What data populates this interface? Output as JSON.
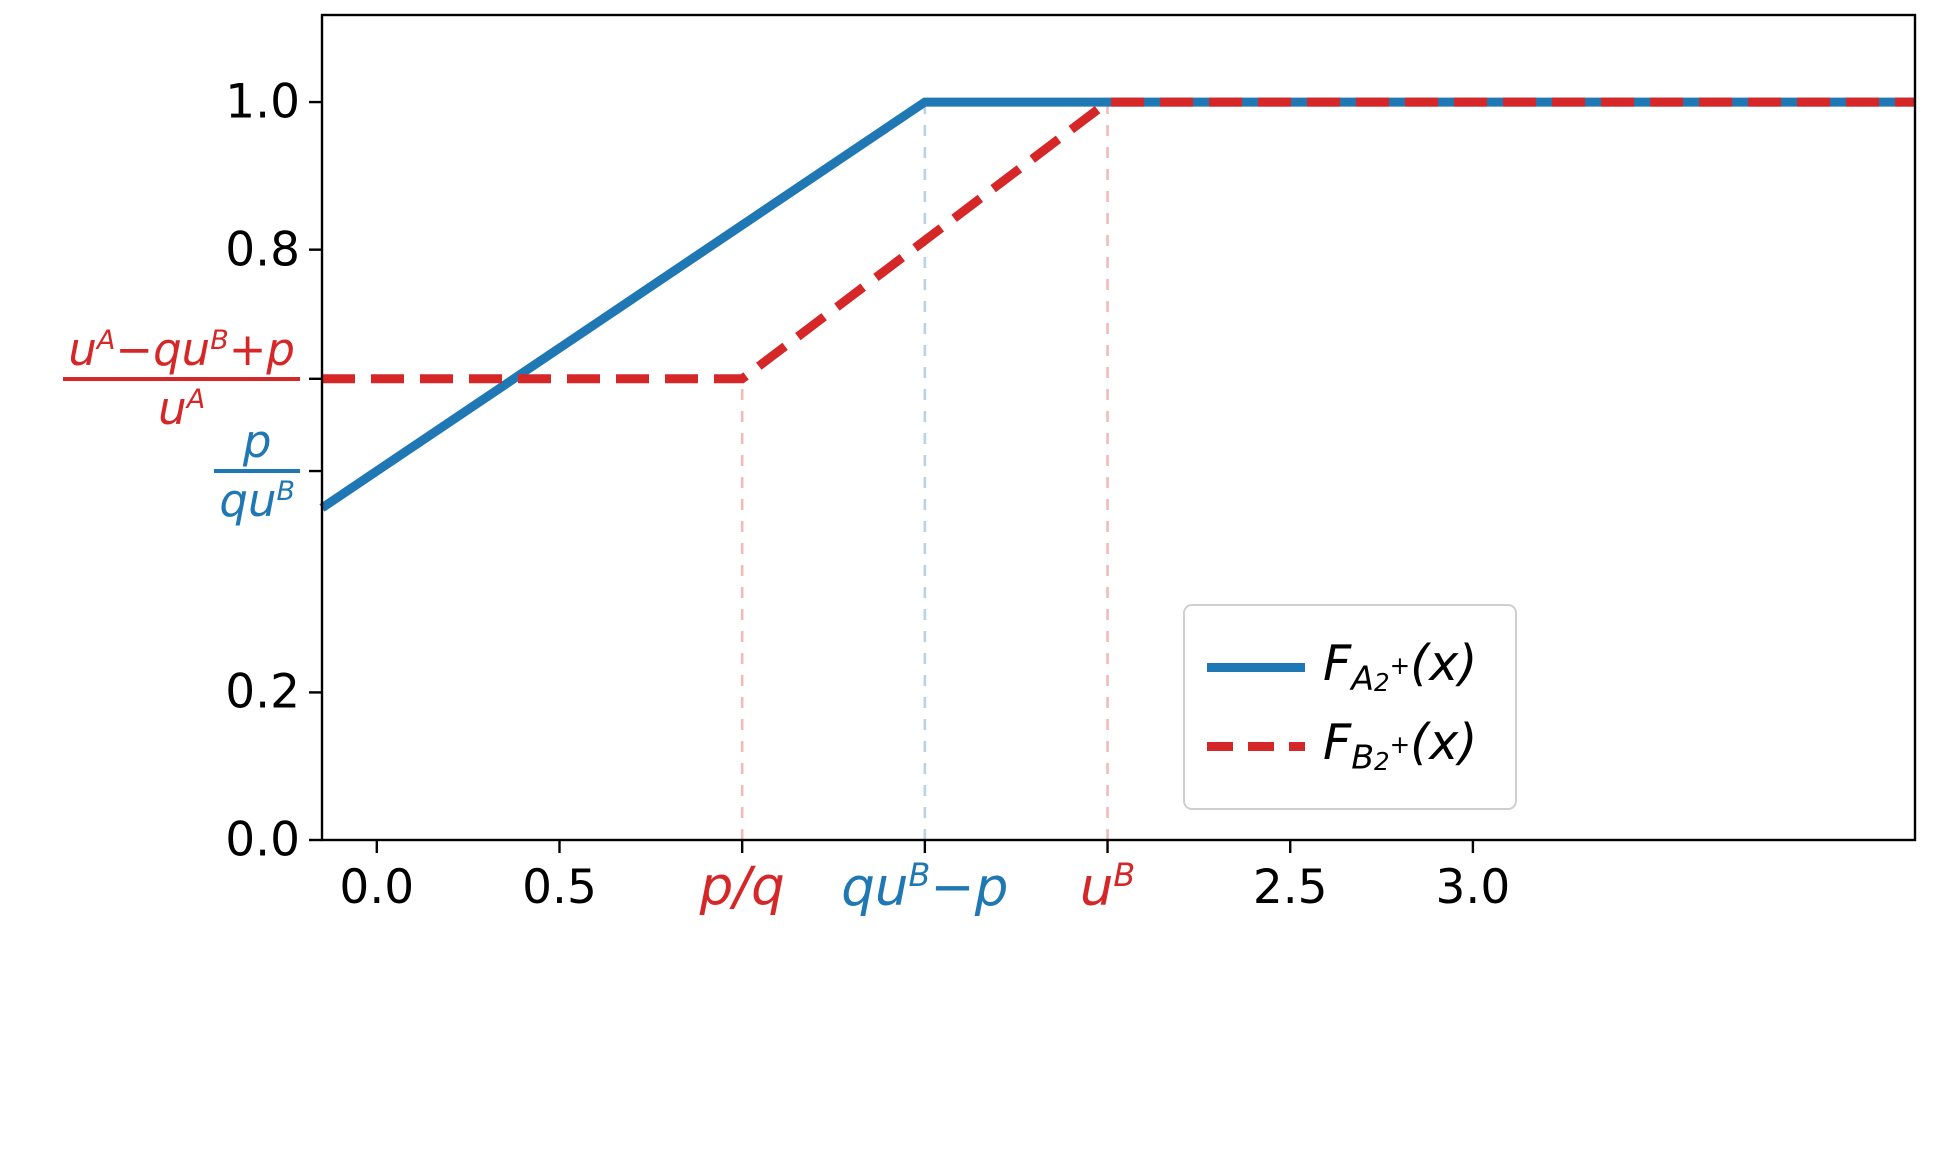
{
  "figure": {
    "background": "#ffffff",
    "accent_blue": "#1f77b4",
    "accent_red": "#d62728"
  },
  "chart_data": {
    "type": "line",
    "title": "",
    "xlabel": "",
    "ylabel": "",
    "xlim": [
      -0.15,
      4.21
    ],
    "ylim": [
      0,
      1.118
    ],
    "grid": false,
    "legend_position": "inside lower-right area",
    "series": [
      {
        "name": "F_A2+(x)",
        "color": "#1f77b4",
        "dash": "solid",
        "width": 9,
        "points": [
          [
            -0.15,
            0.45
          ],
          [
            0.0,
            0.5
          ],
          [
            1.5,
            1.0
          ],
          [
            4.21,
            1.0
          ]
        ],
        "note": "CDF rising linearly from p/(qu^B)=0.5 at x=0 to 1.0 at x=qu^B-p=1.5, then constant 1.0"
      },
      {
        "name": "F_B2+(x)",
        "color": "#d62728",
        "dash": "dashed",
        "width": 9,
        "points": [
          [
            -0.15,
            0.625
          ],
          [
            1.0,
            0.625
          ],
          [
            2.0,
            1.0
          ],
          [
            4.21,
            1.0
          ]
        ],
        "note": "CDF constant at (u^A-qu^B+p)/u^A=0.625 until x=p/q=1, rising linearly to 1.0 at x=u^B=2, then constant 1.0"
      }
    ],
    "guides": [
      {
        "x": 1.0,
        "y_from": 0,
        "y_to": 0.625,
        "color": "rgba(214,39,40,0.32)",
        "id": "guide-p-over-q"
      },
      {
        "x": 1.5,
        "y_from": 0,
        "y_to": 1.0,
        "color": "rgba(31,119,180,0.32)",
        "id": "guide-quB-minus-p"
      },
      {
        "x": 2.0,
        "y_from": 0,
        "y_to": 1.0,
        "color": "rgba(214,39,40,0.32)",
        "id": "guide-uB"
      }
    ],
    "x_ticks": [
      {
        "value": 0.0,
        "id": "0-0",
        "math": false,
        "color": "#000000",
        "label_tokens": [
          {
            "t": "0.0"
          }
        ]
      },
      {
        "value": 0.5,
        "id": "0-5",
        "math": false,
        "color": "#000000",
        "label_tokens": [
          {
            "t": "0.5"
          }
        ]
      },
      {
        "value": 1.0,
        "id": "p-over-q",
        "math": true,
        "color": "#d62728",
        "label_tokens": [
          {
            "t": "p/q"
          }
        ]
      },
      {
        "value": 1.5,
        "id": "quB-minus-p",
        "math": true,
        "color": "#1f77b4",
        "label_tokens": [
          {
            "t": "qu"
          },
          {
            "t": "B",
            "m": "sup"
          },
          {
            "t": "−p"
          }
        ]
      },
      {
        "value": 2.0,
        "id": "uB",
        "math": true,
        "color": "#d62728",
        "label_tokens": [
          {
            "t": "u"
          },
          {
            "t": "B",
            "m": "sup"
          }
        ]
      },
      {
        "value": 2.5,
        "id": "2-5",
        "math": false,
        "color": "#000000",
        "label_tokens": [
          {
            "t": "2.5"
          }
        ]
      },
      {
        "value": 3.0,
        "id": "3-0",
        "math": false,
        "color": "#000000",
        "label_tokens": [
          {
            "t": "3.0"
          }
        ]
      }
    ],
    "y_ticks": [
      {
        "value": 0.0,
        "id": "0-0",
        "type": "plain",
        "color": "#000000",
        "label": "0.0"
      },
      {
        "value": 0.2,
        "id": "0-2",
        "type": "plain",
        "color": "#000000",
        "label": "0.2"
      },
      {
        "value": 0.5,
        "id": "p-over-quB",
        "type": "fraction",
        "color": "#1f77b4",
        "num_tokens": [
          {
            "t": "p"
          }
        ],
        "den_tokens": [
          {
            "t": "qu"
          },
          {
            "t": "B",
            "m": "sup"
          }
        ]
      },
      {
        "value": 0.625,
        "id": "uA-minus-quB-plus-p-over-uA",
        "type": "fraction",
        "color": "#d62728",
        "num_tokens": [
          {
            "t": "u"
          },
          {
            "t": "A",
            "m": "sup"
          },
          {
            "t": "−qu"
          },
          {
            "t": "B",
            "m": "sup"
          },
          {
            "t": "+p"
          }
        ],
        "den_tokens": [
          {
            "t": "u"
          },
          {
            "t": "A",
            "m": "sup"
          }
        ]
      },
      {
        "value": 0.8,
        "id": "0-8",
        "type": "plain",
        "color": "#000000",
        "label": "0.8"
      },
      {
        "value": 1.0,
        "id": "1-0",
        "type": "plain",
        "color": "#000000",
        "label": "1.0"
      }
    ],
    "legend": {
      "entries": [
        {
          "id": "FA2plus",
          "color": "#1f77b4",
          "dash": "solid",
          "tokens": [
            {
              "t": "F"
            },
            {
              "t": "A",
              "m": "sub"
            },
            {
              "t": "2",
              "m": "ssub"
            },
            {
              "t": "+",
              "m": "ssup"
            },
            {
              "t": "(x)"
            }
          ]
        },
        {
          "id": "FB2plus",
          "color": "#d62728",
          "dash": "dashed",
          "tokens": [
            {
              "t": "F"
            },
            {
              "t": "B",
              "m": "sub"
            },
            {
              "t": "2",
              "m": "ssub"
            },
            {
              "t": "+",
              "m": "ssup"
            },
            {
              "t": "(x)"
            }
          ]
        }
      ]
    }
  }
}
